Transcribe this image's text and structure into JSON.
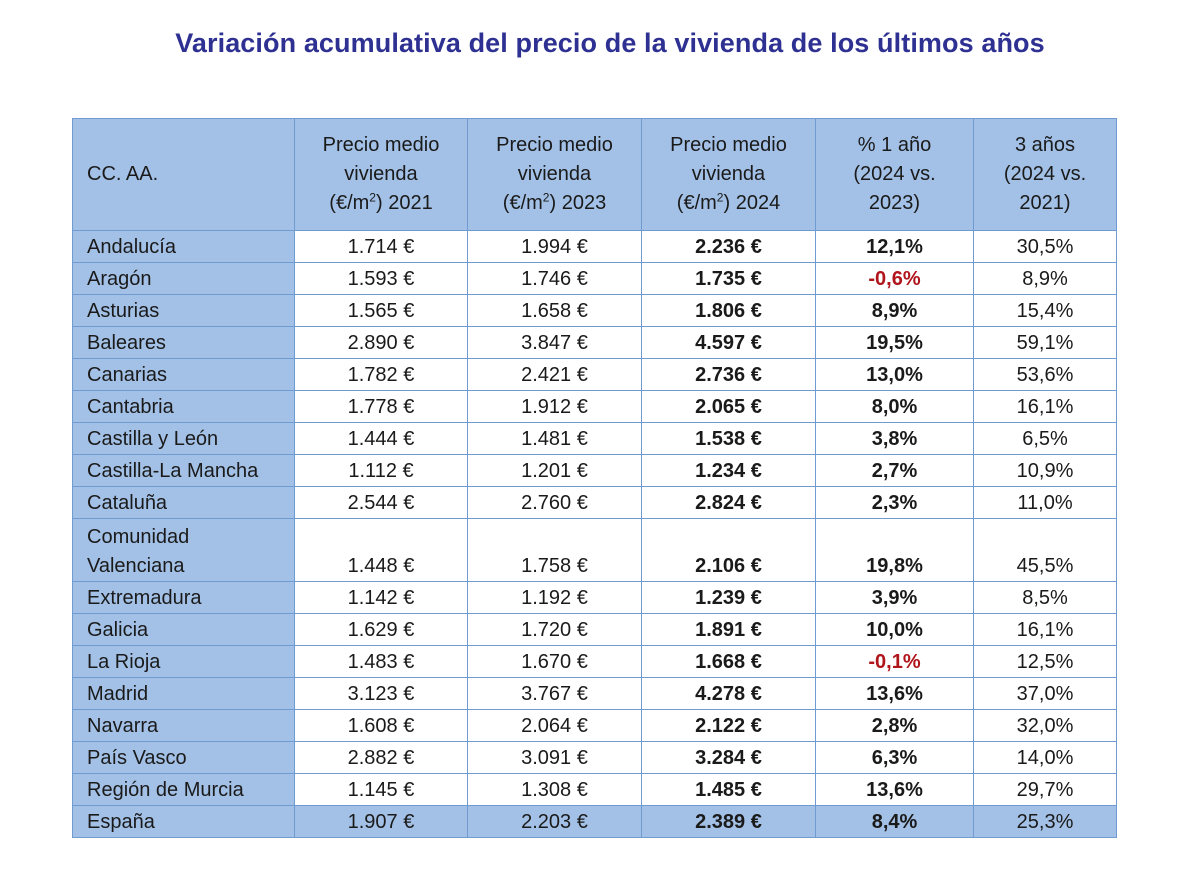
{
  "title": "Variación acumulativa del precio de la vivienda de los últimos años",
  "table": {
    "headers": {
      "region": "CC. AA.",
      "p2021": [
        "Precio medio",
        "vivienda",
        "(€/m",
        "2",
        ") 2021"
      ],
      "p2023": [
        "Precio medio",
        "vivienda",
        "(€/m",
        "2",
        ") 2023"
      ],
      "p2024": [
        "Precio medio",
        "vivienda",
        "(€/m",
        "2",
        ") 2024"
      ],
      "y1": [
        "% 1 año",
        "(2024 vs.",
        "2023)"
      ],
      "y3": [
        "3 años",
        "(2024 vs.",
        "2021)"
      ]
    },
    "rows": [
      {
        "name": "Andalucía",
        "p2021": "1.714 €",
        "p2023": "1.994 €",
        "p2024": "2.236 €",
        "y1": "12,1%",
        "y3": "30,5%"
      },
      {
        "name": "Aragón",
        "p2021": "1.593 €",
        "p2023": "1.746 €",
        "p2024": "1.735 €",
        "y1": "-0,6%",
        "y3": "8,9%"
      },
      {
        "name": "Asturias",
        "p2021": "1.565 €",
        "p2023": "1.658 €",
        "p2024": "1.806 €",
        "y1": "8,9%",
        "y3": "15,4%"
      },
      {
        "name": "Baleares",
        "p2021": "2.890 €",
        "p2023": "3.847 €",
        "p2024": "4.597 €",
        "y1": "19,5%",
        "y3": "59,1%"
      },
      {
        "name": "Canarias",
        "p2021": "1.782 €",
        "p2023": "2.421 €",
        "p2024": "2.736 €",
        "y1": "13,0%",
        "y3": "53,6%"
      },
      {
        "name": "Cantabria",
        "p2021": "1.778 €",
        "p2023": "1.912 €",
        "p2024": "2.065 €",
        "y1": "8,0%",
        "y3": "16,1%"
      },
      {
        "name": "Castilla y León",
        "p2021": "1.444 €",
        "p2023": "1.481 €",
        "p2024": "1.538 €",
        "y1": "3,8%",
        "y3": "6,5%"
      },
      {
        "name": "Castilla-La Mancha",
        "p2021": "1.112 €",
        "p2023": "1.201 €",
        "p2024": "1.234 €",
        "y1": "2,7%",
        "y3": "10,9%"
      },
      {
        "name": "Cataluña",
        "p2021": "2.544 €",
        "p2023": "2.760 €",
        "p2024": "2.824 €",
        "y1": "2,3%",
        "y3": "11,0%"
      },
      {
        "name": [
          "Comunidad",
          "Valenciana"
        ],
        "p2021": "1.448 €",
        "p2023": "1.758 €",
        "p2024": "2.106 €",
        "y1": "19,8%",
        "y3": "45,5%"
      },
      {
        "name": "Extremadura",
        "p2021": "1.142 €",
        "p2023": "1.192 €",
        "p2024": "1.239 €",
        "y1": "3,9%",
        "y3": "8,5%"
      },
      {
        "name": "Galicia",
        "p2021": "1.629 €",
        "p2023": "1.720 €",
        "p2024": "1.891 €",
        "y1": "10,0%",
        "y3": "16,1%"
      },
      {
        "name": "La Rioja",
        "p2021": "1.483 €",
        "p2023": "1.670 €",
        "p2024": "1.668 €",
        "y1": "-0,1%",
        "y3": "12,5%"
      },
      {
        "name": "Madrid",
        "p2021": "3.123 €",
        "p2023": "3.767 €",
        "p2024": "4.278 €",
        "y1": "13,6%",
        "y3": "37,0%"
      },
      {
        "name": "Navarra",
        "p2021": "1.608 €",
        "p2023": "2.064 €",
        "p2024": "2.122 €",
        "y1": "2,8%",
        "y3": "32,0%"
      },
      {
        "name": "País Vasco",
        "p2021": "2.882 €",
        "p2023": "3.091 €",
        "p2024": "3.284 €",
        "y1": "6,3%",
        "y3": "14,0%"
      },
      {
        "name": "Región de Murcia",
        "p2021": "1.145 €",
        "p2023": "1.308 €",
        "p2024": "1.485 €",
        "y1": "13,6%",
        "y3": "29,7%"
      }
    ],
    "total": {
      "name": "España",
      "p2021": "1.907 €",
      "p2023": "2.203 €",
      "p2024": "2.389 €",
      "y1": "8,4%",
      "y3": "25,3%"
    }
  },
  "colors": {
    "title": "#2e3192",
    "header_fill": "#a3c1e6",
    "border": "#6f9bd1",
    "negative": "#b0151b"
  },
  "chart_data": {
    "type": "table",
    "title": "Variación acumulativa del precio de la vivienda de los últimos años",
    "columns": [
      "CC. AA.",
      "Precio medio vivienda (€/m2) 2021",
      "Precio medio vivienda (€/m2) 2023",
      "Precio medio vivienda (€/m2) 2024",
      "% 1 año (2024 vs. 2023)",
      "3 años (2024 vs. 2021)"
    ],
    "rows": [
      [
        "Andalucía",
        1714,
        1994,
        2236,
        12.1,
        30.5
      ],
      [
        "Aragón",
        1593,
        1746,
        1735,
        -0.6,
        8.9
      ],
      [
        "Asturias",
        1565,
        1658,
        1806,
        8.9,
        15.4
      ],
      [
        "Baleares",
        2890,
        3847,
        4597,
        19.5,
        59.1
      ],
      [
        "Canarias",
        1782,
        2421,
        2736,
        13.0,
        53.6
      ],
      [
        "Cantabria",
        1778,
        1912,
        2065,
        8.0,
        16.1
      ],
      [
        "Castilla y León",
        1444,
        1481,
        1538,
        3.8,
        6.5
      ],
      [
        "Castilla-La Mancha",
        1112,
        1201,
        1234,
        2.7,
        10.9
      ],
      [
        "Cataluña",
        2544,
        2760,
        2824,
        2.3,
        11.0
      ],
      [
        "Comunidad Valenciana",
        1448,
        1758,
        2106,
        19.8,
        45.5
      ],
      [
        "Extremadura",
        1142,
        1192,
        1239,
        3.9,
        8.5
      ],
      [
        "Galicia",
        1629,
        1720,
        1891,
        10.0,
        16.1
      ],
      [
        "La Rioja",
        1483,
        1670,
        1668,
        -0.1,
        12.5
      ],
      [
        "Madrid",
        3123,
        3767,
        4278,
        13.6,
        37.0
      ],
      [
        "Navarra",
        1608,
        2064,
        2122,
        2.8,
        32.0
      ],
      [
        "País Vasco",
        2882,
        3091,
        3284,
        6.3,
        14.0
      ],
      [
        "Región de Murcia",
        1145,
        1308,
        1485,
        13.6,
        29.7
      ],
      [
        "España",
        1907,
        2203,
        2389,
        8.4,
        25.3
      ]
    ]
  }
}
